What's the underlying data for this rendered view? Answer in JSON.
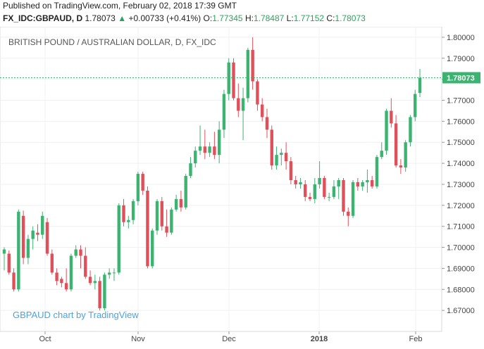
{
  "header": {
    "published": "Published on TradingView.com, February 02, 2018 17:39 GMT",
    "symbol": "FX_IDC:GBPAUD, D",
    "last": "1.78073",
    "arrow": "▲",
    "change": "+0.00733 (+0.41%)",
    "o_label": "O:",
    "o": "1.77345",
    "h_label": "H:",
    "h": "1.78487",
    "l_label": "L:",
    "l": "1.77152",
    "c_label": "C:",
    "c": "1.78073"
  },
  "chart_title": "BRITISH POUND / AUSTRALIAN DOLLAR, D, FX_IDC",
  "watermark": "GBPAUD chart by TradingView",
  "last_price_label": "1.78073",
  "colors": {
    "up": "#3cb371",
    "down": "#e0505a",
    "grid": "#eef0f3",
    "last_line": "#3cb371"
  },
  "chart_data": {
    "type": "candlestick",
    "title": "BRITISH POUND / AUSTRALIAN DOLLAR, D, FX_IDC",
    "ylim": [
      1.66,
      1.805
    ],
    "y_ticks": [
      "1.80000",
      "1.79000",
      "1.78000",
      "1.77000",
      "1.76000",
      "1.75000",
      "1.74000",
      "1.73000",
      "1.72000",
      "1.71000",
      "1.70000",
      "1.69000",
      "1.68000",
      "1.67000"
    ],
    "x_ticks": [
      "Oct",
      "Nov",
      "Dec",
      "2018",
      "Feb"
    ],
    "last": 1.78073,
    "candles": [
      {
        "o": 1.697,
        "h": 1.7,
        "l": 1.689,
        "c": 1.699
      },
      {
        "o": 1.697,
        "h": 1.6985,
        "l": 1.687,
        "c": 1.688
      },
      {
        "o": 1.688,
        "h": 1.69,
        "l": 1.679,
        "c": 1.68
      },
      {
        "o": 1.68,
        "h": 1.718,
        "l": 1.679,
        "c": 1.717
      },
      {
        "o": 1.715,
        "h": 1.7175,
        "l": 1.692,
        "c": 1.695
      },
      {
        "o": 1.695,
        "h": 1.706,
        "l": 1.692,
        "c": 1.704
      },
      {
        "o": 1.704,
        "h": 1.71,
        "l": 1.699,
        "c": 1.708
      },
      {
        "o": 1.707,
        "h": 1.711,
        "l": 1.703,
        "c": 1.706
      },
      {
        "o": 1.706,
        "h": 1.717,
        "l": 1.704,
        "c": 1.715
      },
      {
        "o": 1.712,
        "h": 1.714,
        "l": 1.696,
        "c": 1.697
      },
      {
        "o": 1.697,
        "h": 1.699,
        "l": 1.687,
        "c": 1.688
      },
      {
        "o": 1.688,
        "h": 1.69,
        "l": 1.682,
        "c": 1.684
      },
      {
        "o": 1.685,
        "h": 1.686,
        "l": 1.681,
        "c": 1.683
      },
      {
        "o": 1.683,
        "h": 1.69,
        "l": 1.679,
        "c": 1.68
      },
      {
        "o": 1.68,
        "h": 1.697,
        "l": 1.679,
        "c": 1.696
      },
      {
        "o": 1.696,
        "h": 1.701,
        "l": 1.695,
        "c": 1.699
      },
      {
        "o": 1.699,
        "h": 1.701,
        "l": 1.69,
        "c": 1.696
      },
      {
        "o": 1.696,
        "h": 1.7,
        "l": 1.685,
        "c": 1.686
      },
      {
        "o": 1.686,
        "h": 1.689,
        "l": 1.682,
        "c": 1.683
      },
      {
        "o": 1.683,
        "h": 1.687,
        "l": 1.68,
        "c": 1.684
      },
      {
        "o": 1.684,
        "h": 1.686,
        "l": 1.67,
        "c": 1.671
      },
      {
        "o": 1.671,
        "h": 1.688,
        "l": 1.67,
        "c": 1.687
      },
      {
        "o": 1.687,
        "h": 1.69,
        "l": 1.685,
        "c": 1.688
      },
      {
        "o": 1.688,
        "h": 1.69,
        "l": 1.684,
        "c": 1.688
      },
      {
        "o": 1.688,
        "h": 1.721,
        "l": 1.687,
        "c": 1.72
      },
      {
        "o": 1.72,
        "h": 1.723,
        "l": 1.71,
        "c": 1.712
      },
      {
        "o": 1.712,
        "h": 1.715,
        "l": 1.709,
        "c": 1.713
      },
      {
        "o": 1.713,
        "h": 1.723,
        "l": 1.711,
        "c": 1.722
      },
      {
        "o": 1.722,
        "h": 1.736,
        "l": 1.72,
        "c": 1.735
      },
      {
        "o": 1.735,
        "h": 1.736,
        "l": 1.725,
        "c": 1.727
      },
      {
        "o": 1.727,
        "h": 1.729,
        "l": 1.69,
        "c": 1.691
      },
      {
        "o": 1.691,
        "h": 1.709,
        "l": 1.69,
        "c": 1.708
      },
      {
        "o": 1.708,
        "h": 1.723,
        "l": 1.706,
        "c": 1.722
      },
      {
        "o": 1.722,
        "h": 1.724,
        "l": 1.708,
        "c": 1.71
      },
      {
        "o": 1.71,
        "h": 1.718,
        "l": 1.705,
        "c": 1.707
      },
      {
        "o": 1.707,
        "h": 1.719,
        "l": 1.706,
        "c": 1.718
      },
      {
        "o": 1.718,
        "h": 1.725,
        "l": 1.717,
        "c": 1.723
      },
      {
        "o": 1.723,
        "h": 1.727,
        "l": 1.717,
        "c": 1.719
      },
      {
        "o": 1.719,
        "h": 1.735,
        "l": 1.718,
        "c": 1.734
      },
      {
        "o": 1.734,
        "h": 1.743,
        "l": 1.733,
        "c": 1.74
      },
      {
        "o": 1.74,
        "h": 1.748,
        "l": 1.738,
        "c": 1.746
      },
      {
        "o": 1.746,
        "h": 1.758,
        "l": 1.744,
        "c": 1.748
      },
      {
        "o": 1.748,
        "h": 1.756,
        "l": 1.742,
        "c": 1.745
      },
      {
        "o": 1.745,
        "h": 1.75,
        "l": 1.743,
        "c": 1.748
      },
      {
        "o": 1.748,
        "h": 1.755,
        "l": 1.742,
        "c": 1.744
      },
      {
        "o": 1.744,
        "h": 1.76,
        "l": 1.74,
        "c": 1.756
      },
      {
        "o": 1.756,
        "h": 1.775,
        "l": 1.752,
        "c": 1.773
      },
      {
        "o": 1.773,
        "h": 1.79,
        "l": 1.77,
        "c": 1.788
      },
      {
        "o": 1.788,
        "h": 1.79,
        "l": 1.77,
        "c": 1.771
      },
      {
        "o": 1.771,
        "h": 1.778,
        "l": 1.762,
        "c": 1.765
      },
      {
        "o": 1.765,
        "h": 1.776,
        "l": 1.751,
        "c": 1.771
      },
      {
        "o": 1.771,
        "h": 1.795,
        "l": 1.769,
        "c": 1.794
      },
      {
        "o": 1.794,
        "h": 1.8,
        "l": 1.775,
        "c": 1.779
      },
      {
        "o": 1.779,
        "h": 1.78,
        "l": 1.765,
        "c": 1.768
      },
      {
        "o": 1.768,
        "h": 1.771,
        "l": 1.76,
        "c": 1.762
      },
      {
        "o": 1.762,
        "h": 1.766,
        "l": 1.752,
        "c": 1.756
      },
      {
        "o": 1.756,
        "h": 1.758,
        "l": 1.737,
        "c": 1.739
      },
      {
        "o": 1.739,
        "h": 1.748,
        "l": 1.737,
        "c": 1.744
      },
      {
        "o": 1.744,
        "h": 1.747,
        "l": 1.739,
        "c": 1.745
      },
      {
        "o": 1.745,
        "h": 1.75,
        "l": 1.737,
        "c": 1.741
      },
      {
        "o": 1.741,
        "h": 1.743,
        "l": 1.73,
        "c": 1.732
      },
      {
        "o": 1.732,
        "h": 1.734,
        "l": 1.728,
        "c": 1.73
      },
      {
        "o": 1.73,
        "h": 1.733,
        "l": 1.728,
        "c": 1.731
      },
      {
        "o": 1.73,
        "h": 1.732,
        "l": 1.722,
        "c": 1.724
      },
      {
        "o": 1.724,
        "h": 1.726,
        "l": 1.722,
        "c": 1.723
      },
      {
        "o": 1.723,
        "h": 1.733,
        "l": 1.721,
        "c": 1.73
      },
      {
        "o": 1.73,
        "h": 1.741,
        "l": 1.728,
        "c": 1.733
      },
      {
        "o": 1.733,
        "h": 1.734,
        "l": 1.723,
        "c": 1.724
      },
      {
        "o": 1.724,
        "h": 1.726,
        "l": 1.722,
        "c": 1.724
      },
      {
        "o": 1.724,
        "h": 1.732,
        "l": 1.723,
        "c": 1.729
      },
      {
        "o": 1.729,
        "h": 1.733,
        "l": 1.723,
        "c": 1.732
      },
      {
        "o": 1.732,
        "h": 1.733,
        "l": 1.715,
        "c": 1.717
      },
      {
        "o": 1.717,
        "h": 1.719,
        "l": 1.71,
        "c": 1.715
      },
      {
        "o": 1.715,
        "h": 1.732,
        "l": 1.714,
        "c": 1.731
      },
      {
        "o": 1.731,
        "h": 1.733,
        "l": 1.727,
        "c": 1.729
      },
      {
        "o": 1.729,
        "h": 1.732,
        "l": 1.727,
        "c": 1.731
      },
      {
        "o": 1.731,
        "h": 1.737,
        "l": 1.726,
        "c": 1.732
      },
      {
        "o": 1.732,
        "h": 1.734,
        "l": 1.728,
        "c": 1.729
      },
      {
        "o": 1.729,
        "h": 1.744,
        "l": 1.728,
        "c": 1.743
      },
      {
        "o": 1.743,
        "h": 1.75,
        "l": 1.742,
        "c": 1.746
      },
      {
        "o": 1.746,
        "h": 1.766,
        "l": 1.744,
        "c": 1.765
      },
      {
        "o": 1.765,
        "h": 1.771,
        "l": 1.757,
        "c": 1.759
      },
      {
        "o": 1.759,
        "h": 1.763,
        "l": 1.738,
        "c": 1.739
      },
      {
        "o": 1.739,
        "h": 1.742,
        "l": 1.735,
        "c": 1.738
      },
      {
        "o": 1.738,
        "h": 1.751,
        "l": 1.736,
        "c": 1.75
      },
      {
        "o": 1.75,
        "h": 1.763,
        "l": 1.748,
        "c": 1.762
      },
      {
        "o": 1.762,
        "h": 1.775,
        "l": 1.76,
        "c": 1.773
      },
      {
        "o": 1.7735,
        "h": 1.7849,
        "l": 1.7715,
        "c": 1.7807
      }
    ]
  }
}
